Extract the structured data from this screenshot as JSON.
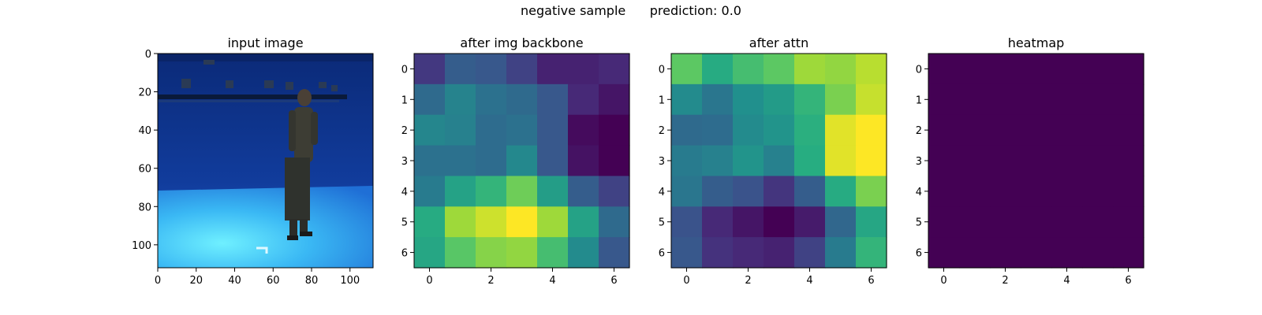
{
  "figure": {
    "suptitle": "negative sample      prediction: 0.0"
  },
  "panels": [
    {
      "title": "input image",
      "type": "image",
      "photo_description": "person standing in a blue motion-capture studio",
      "xticks": [
        0,
        20,
        40,
        60,
        80,
        100
      ],
      "yticks": [
        0,
        20,
        40,
        60,
        80,
        100
      ],
      "xlim": [
        0,
        112
      ],
      "ylim": [
        112,
        0
      ]
    },
    {
      "title": "after img backbone",
      "type": "heatmap",
      "xticks": [
        0,
        2,
        4,
        6
      ],
      "yticks": [
        0,
        1,
        2,
        3,
        4,
        5,
        6
      ],
      "cells": [
        [
          0.17,
          0.3,
          0.28,
          0.2,
          0.1,
          0.1,
          0.12
        ],
        [
          0.35,
          0.45,
          0.38,
          0.35,
          0.28,
          0.12,
          0.06
        ],
        [
          0.46,
          0.44,
          0.36,
          0.38,
          0.28,
          0.03,
          0.0
        ],
        [
          0.38,
          0.38,
          0.36,
          0.47,
          0.28,
          0.05,
          0.0
        ],
        [
          0.42,
          0.58,
          0.66,
          0.78,
          0.56,
          0.3,
          0.2
        ],
        [
          0.62,
          0.86,
          0.93,
          1.0,
          0.86,
          0.58,
          0.35
        ],
        [
          0.6,
          0.74,
          0.82,
          0.84,
          0.7,
          0.48,
          0.28
        ]
      ]
    },
    {
      "title": "after attn",
      "type": "heatmap",
      "xticks": [
        0,
        2,
        4,
        6
      ],
      "yticks": [
        0,
        1,
        2,
        3,
        4,
        5,
        6
      ],
      "cells": [
        [
          0.75,
          0.62,
          0.7,
          0.75,
          0.86,
          0.84,
          0.9
        ],
        [
          0.48,
          0.4,
          0.5,
          0.55,
          0.66,
          0.8,
          0.92
        ],
        [
          0.35,
          0.36,
          0.48,
          0.52,
          0.64,
          0.96,
          1.0
        ],
        [
          0.42,
          0.44,
          0.52,
          0.44,
          0.63,
          0.96,
          1.0
        ],
        [
          0.4,
          0.3,
          0.26,
          0.16,
          0.3,
          0.62,
          0.8
        ],
        [
          0.26,
          0.12,
          0.06,
          0.0,
          0.08,
          0.34,
          0.6
        ],
        [
          0.28,
          0.15,
          0.12,
          0.1,
          0.2,
          0.42,
          0.66
        ]
      ]
    },
    {
      "title": "heatmap",
      "type": "heatmap",
      "xticks": [
        0,
        2,
        4,
        6
      ],
      "yticks": [
        0,
        1,
        2,
        3,
        4,
        5,
        6
      ],
      "cells": [
        [
          0,
          0,
          0,
          0,
          0,
          0,
          0
        ],
        [
          0,
          0,
          0,
          0,
          0,
          0,
          0
        ],
        [
          0,
          0,
          0,
          0,
          0,
          0,
          0
        ],
        [
          0,
          0,
          0,
          0,
          0,
          0,
          0
        ],
        [
          0,
          0,
          0,
          0,
          0,
          0,
          0
        ],
        [
          0,
          0,
          0,
          0,
          0,
          0,
          0
        ],
        [
          0,
          0,
          0,
          0,
          0,
          0,
          0
        ]
      ]
    }
  ],
  "chart_data": [
    {
      "type": "heatmap",
      "title": "after img backbone",
      "x": [
        0,
        1,
        2,
        3,
        4,
        5,
        6
      ],
      "y": [
        0,
        1,
        2,
        3,
        4,
        5,
        6
      ],
      "colormap": "viridis"
    },
    {
      "type": "heatmap",
      "title": "after attn",
      "x": [
        0,
        1,
        2,
        3,
        4,
        5,
        6
      ],
      "y": [
        0,
        1,
        2,
        3,
        4,
        5,
        6
      ],
      "colormap": "viridis"
    },
    {
      "type": "heatmap",
      "title": "heatmap",
      "x": [
        0,
        1,
        2,
        3,
        4,
        5,
        6
      ],
      "y": [
        0,
        1,
        2,
        3,
        4,
        5,
        6
      ],
      "colormap": "viridis"
    }
  ]
}
